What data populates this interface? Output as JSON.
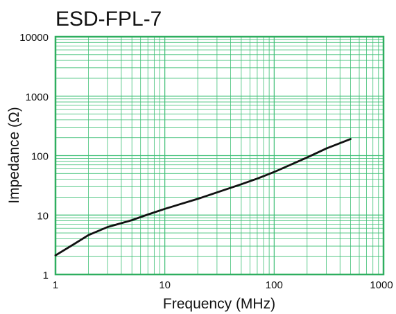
{
  "chart_data": {
    "type": "line",
    "title": "ESD-FPL-7",
    "xlabel": "Frequency (MHz)",
    "ylabel": "Impedance (Ω)",
    "x_scale": "log",
    "y_scale": "log",
    "xlim": [
      1,
      1000
    ],
    "ylim": [
      1,
      10000
    ],
    "x_ticks": [
      "1",
      "10",
      "100",
      "1000"
    ],
    "y_ticks": [
      "10000",
      "1000",
      "100",
      "10",
      "1"
    ],
    "grid": true,
    "series": [
      {
        "x": [
          1,
          1.5,
          2,
          3,
          4,
          5,
          7,
          10,
          20,
          30,
          50,
          70,
          100,
          200,
          300,
          500
        ],
        "y": [
          2.1,
          3.3,
          4.6,
          6.3,
          7.3,
          8.2,
          10.2,
          12.7,
          18.7,
          24,
          33,
          41,
          53,
          93,
          132,
          190
        ]
      }
    ],
    "colors": {
      "grid": "#3dbf75",
      "frame": "#2eae5f",
      "line": "#111111"
    }
  }
}
